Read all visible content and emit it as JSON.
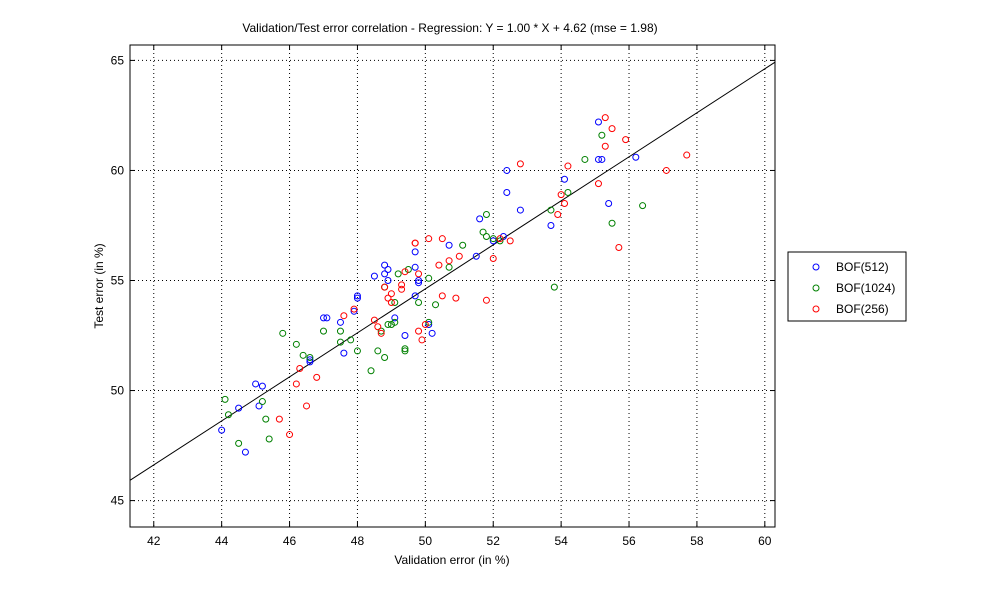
{
  "chart_data": {
    "type": "scatter",
    "title": "Validation/Test error correlation - Regression: Y = 1.00 * X + 4.62 (mse = 1.98)",
    "xlabel": "Validation error (in %)",
    "ylabel": "Test error (in %)",
    "xlim": [
      41.3,
      60.3
    ],
    "ylim": [
      43.8,
      65.7
    ],
    "xticks": [
      42,
      44,
      46,
      48,
      50,
      52,
      54,
      56,
      58,
      60
    ],
    "yticks": [
      45,
      50,
      55,
      60,
      65
    ],
    "grid": true,
    "legend_position": "right",
    "regression": {
      "slope": 1.0,
      "intercept": 4.62
    },
    "series": [
      {
        "name": "BOF(512)",
        "color": "#0000ff",
        "points": [
          [
            44.0,
            48.2
          ],
          [
            44.7,
            47.2
          ],
          [
            44.5,
            49.2
          ],
          [
            45.0,
            50.3
          ],
          [
            45.2,
            50.2
          ],
          [
            45.1,
            49.3
          ],
          [
            46.6,
            51.4
          ],
          [
            46.6,
            51.3
          ],
          [
            47.0,
            53.3
          ],
          [
            47.1,
            53.3
          ],
          [
            47.5,
            53.1
          ],
          [
            47.6,
            51.7
          ],
          [
            47.9,
            53.6
          ],
          [
            48.0,
            54.3
          ],
          [
            48.0,
            54.2
          ],
          [
            48.5,
            55.2
          ],
          [
            48.8,
            55.7
          ],
          [
            48.8,
            55.3
          ],
          [
            48.9,
            55.0
          ],
          [
            48.9,
            55.5
          ],
          [
            49.1,
            53.3
          ],
          [
            49.4,
            52.5
          ],
          [
            49.7,
            56.3
          ],
          [
            49.7,
            55.6
          ],
          [
            49.8,
            55.0
          ],
          [
            49.8,
            54.9
          ],
          [
            49.7,
            54.3
          ],
          [
            50.1,
            53.0
          ],
          [
            50.2,
            52.6
          ],
          [
            50.7,
            56.6
          ],
          [
            51.5,
            56.1
          ],
          [
            51.6,
            57.8
          ],
          [
            52.0,
            56.8
          ],
          [
            52.3,
            57.0
          ],
          [
            52.4,
            60.0
          ],
          [
            52.4,
            59.0
          ],
          [
            52.8,
            58.2
          ],
          [
            53.7,
            57.5
          ],
          [
            54.1,
            59.6
          ],
          [
            55.1,
            62.2
          ],
          [
            55.1,
            60.5
          ],
          [
            55.2,
            60.5
          ],
          [
            55.4,
            58.5
          ],
          [
            56.2,
            60.6
          ]
        ]
      },
      {
        "name": "BOF(1024)",
        "color": "#008000",
        "points": [
          [
            44.1,
            49.6
          ],
          [
            44.2,
            48.9
          ],
          [
            44.5,
            47.6
          ],
          [
            45.2,
            49.5
          ],
          [
            45.3,
            48.7
          ],
          [
            45.4,
            47.8
          ],
          [
            45.8,
            52.6
          ],
          [
            46.2,
            52.1
          ],
          [
            46.4,
            51.6
          ],
          [
            46.6,
            51.5
          ],
          [
            47.0,
            52.7
          ],
          [
            47.5,
            52.2
          ],
          [
            47.5,
            52.7
          ],
          [
            47.8,
            52.3
          ],
          [
            48.0,
            51.8
          ],
          [
            48.4,
            50.9
          ],
          [
            48.6,
            51.8
          ],
          [
            48.7,
            52.7
          ],
          [
            48.8,
            51.5
          ],
          [
            48.8,
            54.7
          ],
          [
            48.9,
            53.0
          ],
          [
            49.0,
            53.0
          ],
          [
            49.1,
            53.1
          ],
          [
            49.1,
            54.0
          ],
          [
            49.2,
            55.3
          ],
          [
            49.4,
            51.9
          ],
          [
            49.4,
            51.8
          ],
          [
            49.5,
            55.5
          ],
          [
            49.8,
            54.0
          ],
          [
            50.1,
            53.1
          ],
          [
            50.1,
            55.1
          ],
          [
            50.3,
            53.9
          ],
          [
            50.7,
            55.6
          ],
          [
            51.1,
            56.6
          ],
          [
            51.7,
            57.2
          ],
          [
            51.8,
            58.0
          ],
          [
            51.8,
            57.0
          ],
          [
            52.0,
            56.9
          ],
          [
            52.2,
            56.8
          ],
          [
            53.7,
            58.2
          ],
          [
            53.8,
            54.7
          ],
          [
            54.2,
            59.0
          ],
          [
            54.7,
            60.5
          ],
          [
            55.2,
            61.6
          ],
          [
            55.5,
            57.6
          ],
          [
            56.4,
            58.4
          ]
        ]
      },
      {
        "name": "BOF(256)",
        "color": "#ff0000",
        "points": [
          [
            45.7,
            48.7
          ],
          [
            46.0,
            48.0
          ],
          [
            46.2,
            50.3
          ],
          [
            46.3,
            51.0
          ],
          [
            46.5,
            49.3
          ],
          [
            46.8,
            50.6
          ],
          [
            47.6,
            53.4
          ],
          [
            47.9,
            53.7
          ],
          [
            48.5,
            53.2
          ],
          [
            48.6,
            52.9
          ],
          [
            48.7,
            52.6
          ],
          [
            48.8,
            54.7
          ],
          [
            48.9,
            54.2
          ],
          [
            49.0,
            54.4
          ],
          [
            49.0,
            54.0
          ],
          [
            49.3,
            54.6
          ],
          [
            49.3,
            54.8
          ],
          [
            49.4,
            55.4
          ],
          [
            49.7,
            56.7
          ],
          [
            49.7,
            56.7
          ],
          [
            49.8,
            55.3
          ],
          [
            49.8,
            52.7
          ],
          [
            49.9,
            52.3
          ],
          [
            50.0,
            53.0
          ],
          [
            50.1,
            56.9
          ],
          [
            50.4,
            55.7
          ],
          [
            50.5,
            54.3
          ],
          [
            50.5,
            56.9
          ],
          [
            50.7,
            55.9
          ],
          [
            50.9,
            54.2
          ],
          [
            51.0,
            56.1
          ],
          [
            51.8,
            54.1
          ],
          [
            52.0,
            56.0
          ],
          [
            52.2,
            56.9
          ],
          [
            52.5,
            56.8
          ],
          [
            52.8,
            60.3
          ],
          [
            53.9,
            58.0
          ],
          [
            54.0,
            58.9
          ],
          [
            54.1,
            58.5
          ],
          [
            54.2,
            60.2
          ],
          [
            55.1,
            59.4
          ],
          [
            55.3,
            61.1
          ],
          [
            55.3,
            62.4
          ],
          [
            55.5,
            61.9
          ],
          [
            55.7,
            56.5
          ],
          [
            55.9,
            61.4
          ],
          [
            57.1,
            60.0
          ],
          [
            57.7,
            60.7
          ]
        ]
      }
    ]
  }
}
